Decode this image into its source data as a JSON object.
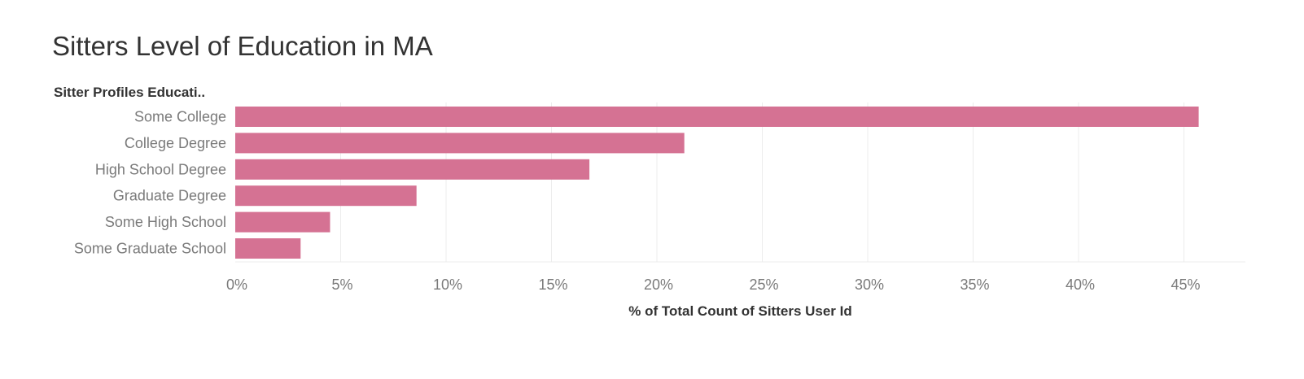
{
  "chart_data": {
    "type": "bar",
    "orientation": "horizontal",
    "title": "Sitters Level of Education in MA",
    "category_header": "Sitter Profiles Educati..",
    "xlabel": "% of Total Count of Sitters User Id",
    "ylabel": "",
    "categories": [
      "Some College",
      "College Degree",
      "High School Degree",
      "Graduate Degree",
      "Some High School",
      "Some Graduate School"
    ],
    "values": [
      45.7,
      21.3,
      16.8,
      8.6,
      4.5,
      3.1
    ],
    "xlim": [
      0,
      48
    ],
    "ticks": [
      0,
      5,
      10,
      15,
      20,
      25,
      30,
      35,
      40,
      45
    ],
    "tick_labels": [
      "0%",
      "5%",
      "10%",
      "15%",
      "20%",
      "25%",
      "30%",
      "35%",
      "40%",
      "45%"
    ],
    "grid": true,
    "colors": {
      "bar": "#d57293",
      "grid": "#ececec",
      "text_muted": "#7a7a7a",
      "text_dark": "#333333"
    }
  }
}
